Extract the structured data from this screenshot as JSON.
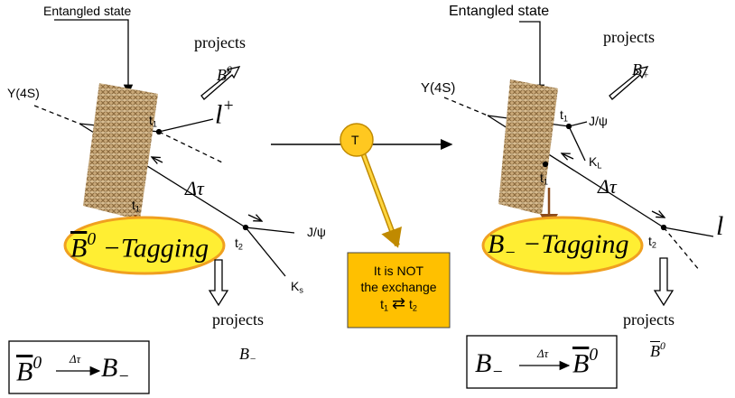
{
  "left": {
    "entangled_label": "Entangled state",
    "projects_top": "projects",
    "particle_top": {
      "base": "B",
      "sup": "0"
    },
    "resonance": "Y(4S)",
    "t1_upper": {
      "base": "t",
      "sub": "1"
    },
    "lepton": {
      "base": "l",
      "sup": "+"
    },
    "t1_lower": {
      "base": "t",
      "sub": "1"
    },
    "delta_tau": "Δτ",
    "jpsi": "J/ψ",
    "t2": {
      "base": "t",
      "sub": "2"
    },
    "kaon": {
      "base": "K",
      "sub": "s"
    },
    "tagging": {
      "base": "B",
      "sup": "0",
      "rest": "−Tagging"
    },
    "projects_bottom": "projects",
    "particle_bottom": {
      "base": "B",
      "sub": "−"
    },
    "formula": {
      "from": {
        "base": "B",
        "sup": "0"
      },
      "over": "Δτ",
      "to": {
        "base": "B",
        "sub": "−"
      }
    }
  },
  "center": {
    "badge": "T",
    "note": {
      "line1": "It is NOT",
      "line2": "the exchange",
      "line3": {
        "from": {
          "base": "t",
          "sub": "1"
        },
        "symbol": "⇄",
        "to": {
          "base": "t",
          "sub": "2"
        }
      }
    }
  },
  "right": {
    "entangled_label": "Entangled state",
    "projects_top": "projects",
    "particle_top": {
      "base": "B",
      "sub": "+"
    },
    "resonance": "Y(4S)",
    "t1_upper": {
      "base": "t",
      "sub": "1"
    },
    "jpsi": "J/ψ",
    "kaon": {
      "base": "K",
      "sub": "L"
    },
    "t1_lower": {
      "base": "t",
      "sub": "1"
    },
    "delta_tau": "Δτ",
    "t2": {
      "base": "t",
      "sub": "2"
    },
    "lepton": "l",
    "tagging": {
      "base": "B",
      "sub": "−",
      "rest": "−Tagging"
    },
    "projects_bottom": "projects",
    "particle_bottom": {
      "base": "B",
      "sup": "0"
    },
    "formula": {
      "from": {
        "base": "B",
        "sub": "−"
      },
      "over": "Δτ",
      "to": {
        "base": "B",
        "sup": "0"
      }
    }
  }
}
